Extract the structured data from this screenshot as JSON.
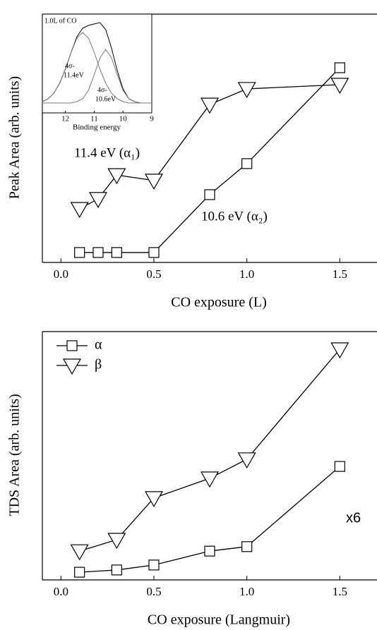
{
  "chart_data": [
    {
      "type": "line",
      "x_label": "CO exposure (L)",
      "y_label": "Peak Area (arb. units)",
      "x": [
        0.1,
        0.2,
        0.3,
        0.5,
        0.8,
        1.0,
        1.5
      ],
      "series": [
        {
          "color": "#000000",
          "marker": "square",
          "values": [
            0.04,
            0.04,
            0.04,
            0.04,
            0.273,
            0.398,
            0.784
          ]
        },
        {
          "color": "#000000",
          "marker": "triangle-down",
          "values": [
            0.216,
            0.256,
            0.352,
            0.33,
            0.636,
            0.699,
            0.716
          ]
        }
      ],
      "annotations": [
        "11.4 eV (α₁)",
        "10.6 eV (α₂)"
      ],
      "xlim": [
        -0.1,
        1.7
      ],
      "ylim": [
        0,
        1
      ],
      "xticks": [
        {
          "value": 0,
          "label": "0.0"
        },
        0.5,
        {
          "value": 1,
          "label": "1.0"
        },
        1.5
      ]
    },
    {
      "type": "line",
      "x_label": "Binding energy",
      "x": [
        12.8,
        12.6,
        12.4,
        12.2,
        12.0,
        11.8,
        11.6,
        11.4,
        11.2,
        11.0,
        10.8,
        10.6,
        10.4,
        10.2,
        10.0,
        9.8,
        9.6,
        9.4,
        9.2,
        9.0
      ],
      "series": [
        {
          "color": "#000000",
          "values": [
            0.08,
            0.1,
            0.14,
            0.21,
            0.31,
            0.43,
            0.54,
            0.6,
            0.62,
            0.63,
            0.64,
            0.59,
            0.46,
            0.3,
            0.17,
            0.1,
            0.08,
            0.07,
            0.07,
            0.07
          ]
        },
        {
          "color": "#777777",
          "values": [
            0.08,
            0.1,
            0.14,
            0.21,
            0.31,
            0.43,
            0.53,
            0.57,
            0.53,
            0.43,
            0.31,
            0.21,
            0.14,
            0.1,
            0.08,
            0.07,
            0.07,
            0.07,
            0.07,
            0.07
          ]
        },
        {
          "color": "#777777",
          "values": [
            0.07,
            0.07,
            0.07,
            0.07,
            0.07,
            0.07,
            0.08,
            0.1,
            0.16,
            0.27,
            0.39,
            0.45,
            0.39,
            0.27,
            0.16,
            0.1,
            0.08,
            0.07,
            0.07,
            0.07
          ]
        }
      ],
      "annotations": [
        "1.0L of CO",
        "4σ-",
        "11.4eV",
        "4σ-",
        "10.6eV"
      ],
      "xlim": [
        12.8,
        9
      ],
      "ylim": [
        0,
        0.7
      ],
      "xticks": [
        12,
        11,
        10,
        9
      ]
    },
    {
      "type": "line",
      "x_label": "CO exposure (Langmuir)",
      "y_label": "TDS Area (arb. units)",
      "x": [
        0.1,
        0.3,
        0.5,
        0.8,
        1.0,
        1.5
      ],
      "series": [
        {
          "name": "α",
          "color": "#000000",
          "marker": "square",
          "values": [
            0.031,
            0.04,
            0.06,
            0.116,
            0.134,
            0.457
          ]
        },
        {
          "name": "β",
          "color": "#000000",
          "marker": "triangle-down",
          "values": [
            0.116,
            0.162,
            0.33,
            0.409,
            0.486,
            0.929
          ]
        }
      ],
      "annotations": [
        "x6"
      ],
      "legend": "upper left",
      "xlim": [
        -0.1,
        1.7
      ],
      "ylim": [
        0,
        1
      ],
      "xticks": [
        {
          "value": 0,
          "label": "0.0"
        },
        0.5,
        {
          "value": 1,
          "label": "1.0"
        },
        1.5
      ]
    }
  ]
}
